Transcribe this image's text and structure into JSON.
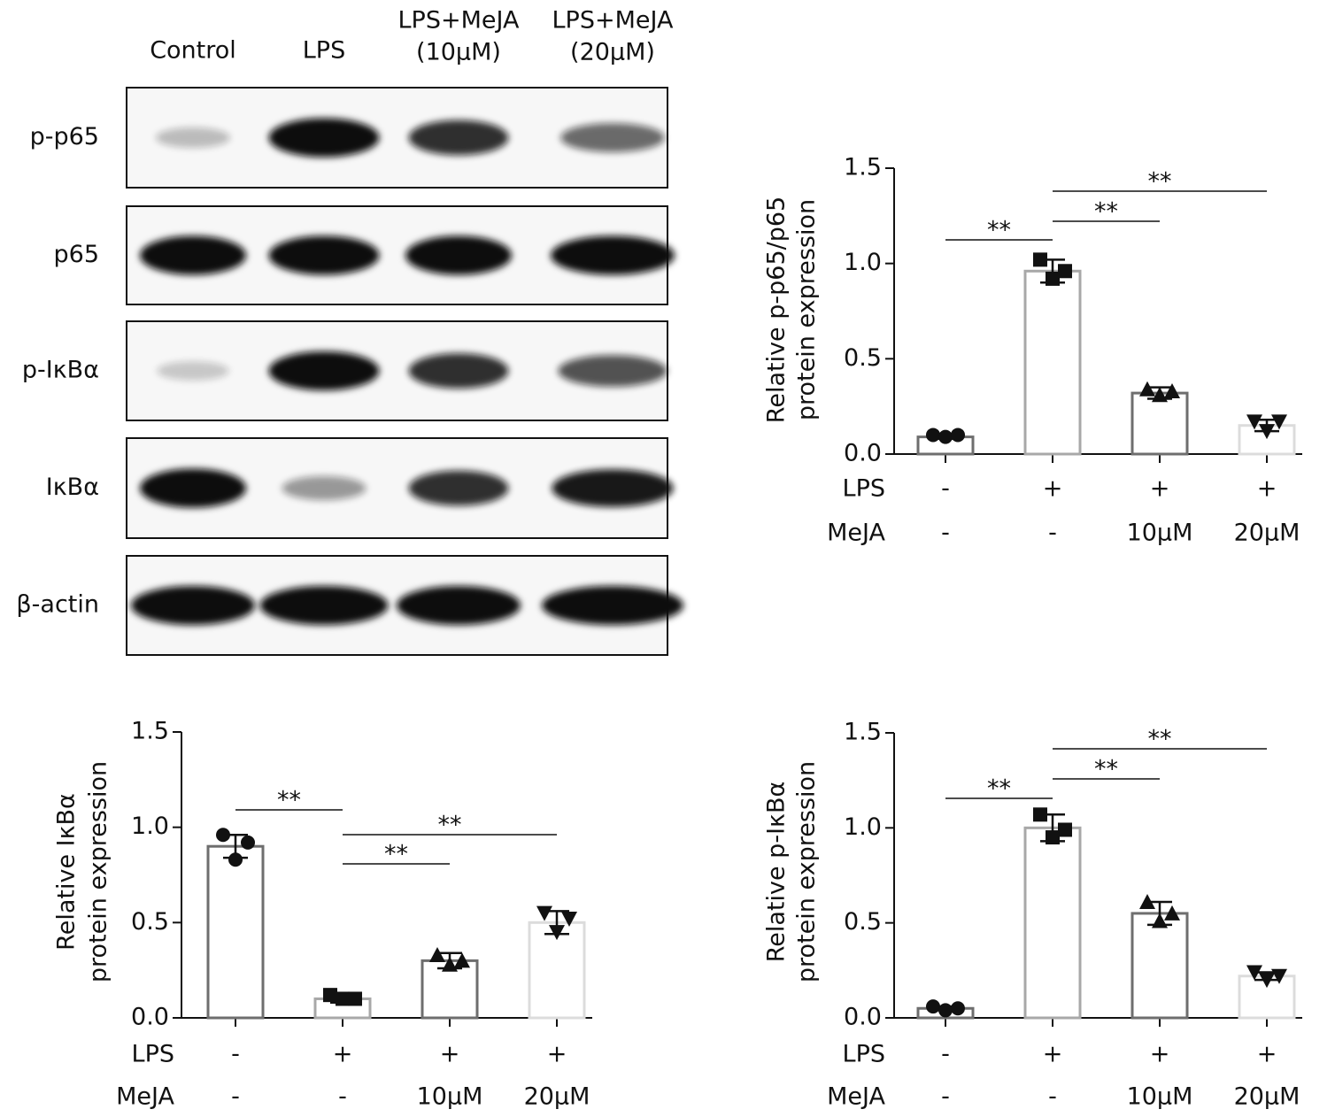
{
  "blot": {
    "lanes": [
      [
        "Control"
      ],
      [
        "LPS"
      ],
      [
        "LPS+MeJA",
        "(10μM)"
      ],
      [
        "LPS+MeJA",
        "(20μM)"
      ]
    ],
    "proteins": [
      "p-p65",
      "p65",
      "p-IκBα",
      "IκBα",
      "β-actin"
    ]
  },
  "chart_data": [
    {
      "type": "bar",
      "ylabel": [
        "Relative p-p65/p65",
        "protein expression"
      ],
      "ylim": [
        0,
        1.5
      ],
      "yticks": [
        {
          "value": 0,
          "label": "0.0"
        },
        {
          "value": 0.5,
          "label": "0.5"
        },
        {
          "value": 1,
          "label": "1.0"
        },
        {
          "value": 1.5,
          "label": "1.5"
        }
      ],
      "values": [
        0.09,
        0.96,
        0.32,
        0.15
      ],
      "errors": [
        0.01,
        0.06,
        0.03,
        0.03
      ],
      "points": [
        [
          0.1,
          0.09,
          0.1
        ],
        [
          1.02,
          0.92,
          0.96
        ],
        [
          0.34,
          0.31,
          0.33
        ],
        [
          0.17,
          0.12,
          0.17
        ]
      ],
      "colors": [
        "#6e6e6e",
        "#a8a8a8",
        "#6e6e6e",
        "#dcdcdc"
      ],
      "markers": [
        "circle",
        "square",
        "triangle",
        "triangle-down"
      ],
      "rows": [
        {
          "label": "LPS",
          "values": [
            "-",
            "+",
            "+",
            "+"
          ]
        },
        {
          "label": "MeJA",
          "values": [
            "-",
            "-",
            "10μM",
            "20μM"
          ]
        }
      ],
      "significance": [
        {
          "groups": [
            0,
            1
          ],
          "label": "**"
        },
        {
          "groups": [
            1,
            2
          ],
          "label": "**"
        },
        {
          "groups": [
            1,
            3
          ],
          "label": "**"
        }
      ]
    },
    {
      "type": "bar",
      "ylabel": [
        "Relative IκBα",
        "protein expression"
      ],
      "ylim": [
        0,
        1.5
      ],
      "yticks": [
        {
          "value": 0,
          "label": "0.0"
        },
        {
          "value": 0.5,
          "label": "0.5"
        },
        {
          "value": 1,
          "label": "1.0"
        },
        {
          "value": 1.5,
          "label": "1.5"
        }
      ],
      "values": [
        0.9,
        0.1,
        0.3,
        0.5
      ],
      "errors": [
        0.06,
        0.02,
        0.04,
        0.06
      ],
      "points": [
        [
          0.96,
          0.83,
          0.92
        ],
        [
          0.12,
          0.1,
          0.1
        ],
        [
          0.33,
          0.28,
          0.3
        ],
        [
          0.55,
          0.45,
          0.52
        ]
      ],
      "colors": [
        "#6e6e6e",
        "#a8a8a8",
        "#6e6e6e",
        "#dcdcdc"
      ],
      "markers": [
        "circle",
        "square",
        "triangle",
        "triangle-down"
      ],
      "rows": [
        {
          "label": "LPS",
          "values": [
            "-",
            "+",
            "+",
            "+"
          ]
        },
        {
          "label": "MeJA",
          "values": [
            "-",
            "-",
            "10μM",
            "20μM"
          ]
        }
      ],
      "significance": [
        {
          "groups": [
            0,
            1
          ],
          "label": "**"
        },
        {
          "groups": [
            1,
            3
          ],
          "label": "**"
        },
        {
          "groups": [
            1,
            2
          ],
          "label": "**"
        }
      ]
    },
    {
      "type": "bar",
      "ylabel": [
        "Relative p-IκBα",
        "protein expression"
      ],
      "ylim": [
        0,
        1.5
      ],
      "yticks": [
        {
          "value": 0,
          "label": "0.0"
        },
        {
          "value": 0.5,
          "label": "0.5"
        },
        {
          "value": 1,
          "label": "1.0"
        },
        {
          "value": 1.5,
          "label": "1.5"
        }
      ],
      "values": [
        0.05,
        1.0,
        0.55,
        0.22
      ],
      "errors": [
        0.01,
        0.07,
        0.06,
        0.02
      ],
      "points": [
        [
          0.06,
          0.04,
          0.05
        ],
        [
          1.07,
          0.95,
          0.99
        ],
        [
          0.61,
          0.51,
          0.55
        ],
        [
          0.24,
          0.2,
          0.22
        ]
      ],
      "colors": [
        "#6e6e6e",
        "#a8a8a8",
        "#6e6e6e",
        "#dcdcdc"
      ],
      "markers": [
        "circle",
        "square",
        "triangle",
        "triangle-down"
      ],
      "rows": [
        {
          "label": "LPS",
          "values": [
            "-",
            "+",
            "+",
            "+"
          ]
        },
        {
          "label": "MeJA",
          "values": [
            "-",
            "-",
            "10μM",
            "20μM"
          ]
        }
      ],
      "significance": [
        {
          "groups": [
            0,
            1
          ],
          "label": "**"
        },
        {
          "groups": [
            1,
            2
          ],
          "label": "**"
        },
        {
          "groups": [
            1,
            3
          ],
          "label": "**"
        }
      ]
    }
  ]
}
